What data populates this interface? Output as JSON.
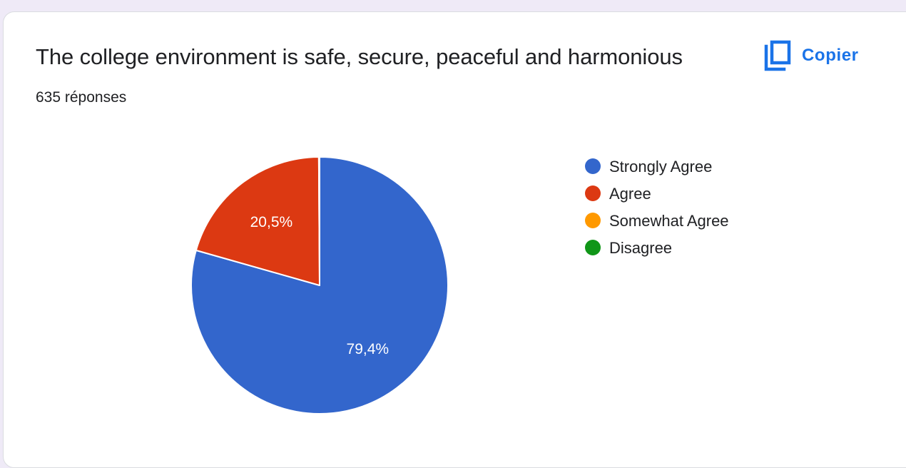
{
  "card": {
    "title": "The college environment is safe, secure, peaceful and harmonious",
    "response_count": "635 réponses",
    "copy_label": "Copier"
  },
  "icons": {
    "copy": "copy-icon"
  },
  "colors": {
    "accent": "#1a73e8",
    "background": "#efeaf7"
  },
  "chart_data": {
    "type": "pie",
    "title": "",
    "slices": [
      {
        "name": "Strongly Agree",
        "value": 79.4,
        "label": "79,4%",
        "color": "#3366cc"
      },
      {
        "name": "Agree",
        "value": 20.5,
        "label": "20,5%",
        "color": "#dc3912"
      },
      {
        "name": "Somewhat Agree",
        "value": 0.1,
        "label": "",
        "color": "#ff9900"
      },
      {
        "name": "Disagree",
        "value": 0,
        "label": "",
        "color": "#109618"
      }
    ],
    "legend_placement": "right"
  }
}
